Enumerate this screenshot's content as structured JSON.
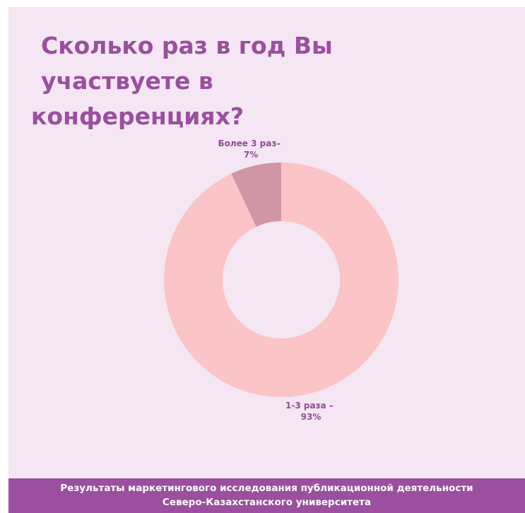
{
  "title": {
    "line1": "Сколько раз в год Вы участвуете в",
    "line2": "конференциях?"
  },
  "chart_data": {
    "type": "pie",
    "donut": true,
    "title": "Сколько раз в год Вы участвуете в конференциях?",
    "slices": [
      {
        "label_line1": "1-3 раза –",
        "label_line2": "93%",
        "value": 93,
        "color": "#fbc4c6"
      },
      {
        "label_line1": "Более 3 раз–",
        "label_line2": "7%",
        "value": 7,
        "color": "#d196a6"
      }
    ],
    "legend": "none"
  },
  "footer": {
    "line1": "Результаты маркетингового исследования публикационной деятельности",
    "line2": "Северо-Казахстанского университета"
  }
}
